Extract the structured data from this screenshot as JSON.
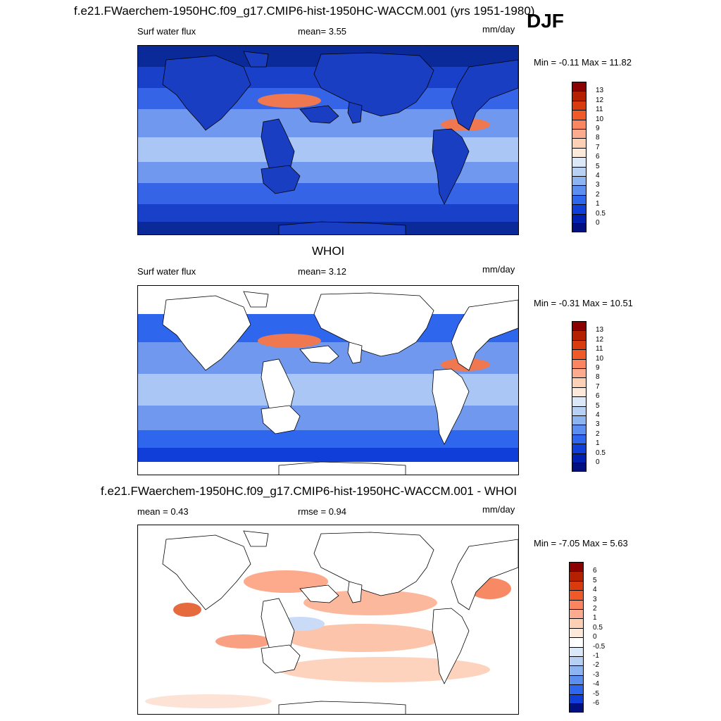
{
  "season": "DJF",
  "panels": [
    {
      "title": "f.e21.FWaerchem-1950HC.f09_g17.CMIP6-hist-1950HC-WACCM.001 (yrs 1951-1980)",
      "left_label": "Surf water flux",
      "mid_label": "mean=   3.55",
      "units": "mm/day",
      "minmax": "Min =  -0.11 Max =  11.82",
      "colorbar": {
        "labels": [
          "13",
          "12",
          "11",
          "10",
          "9",
          "8",
          "7",
          "6",
          "5",
          "4",
          "3",
          "2",
          "1",
          "0.5",
          "0"
        ],
        "colors": [
          "#8b0000",
          "#b52100",
          "#d93a0e",
          "#f05a28",
          "#fa8560",
          "#fcab8f",
          "#fdd0b5",
          "#fde9d9",
          "#dbe8f8",
          "#b7d1f5",
          "#8bb4f0",
          "#5c8ef0",
          "#2f66ee",
          "#0f3fd8",
          "#0020b0",
          "#001080"
        ]
      },
      "map_style": "model"
    },
    {
      "title": "WHOI",
      "left_label": "Surf water flux",
      "mid_label": "mean=   3.12",
      "units": "mm/day",
      "minmax": "Min =  -0.31 Max =  10.51",
      "colorbar": {
        "labels": [
          "13",
          "12",
          "11",
          "10",
          "9",
          "8",
          "7",
          "6",
          "5",
          "4",
          "3",
          "2",
          "1",
          "0.5",
          "0"
        ],
        "colors": [
          "#8b0000",
          "#b52100",
          "#d93a0e",
          "#f05a28",
          "#fa8560",
          "#fcab8f",
          "#fdd0b5",
          "#fde9d9",
          "#dbe8f8",
          "#b7d1f5",
          "#8bb4f0",
          "#5c8ef0",
          "#2f66ee",
          "#0f3fd8",
          "#0020b0",
          "#001080"
        ]
      },
      "map_style": "obs"
    },
    {
      "title": "f.e21.FWaerchem-1950HC.f09_g17.CMIP6-hist-1950HC-WACCM.001 - WHOI",
      "left_label": "mean =   0.43",
      "mid_label": "rmse =   0.94",
      "units": "mm/day",
      "minmax": "Min =  -7.05 Max =   5.63",
      "colorbar": {
        "labels": [
          "6",
          "5",
          "4",
          "3",
          "2",
          "1",
          "0.5",
          "0",
          "-0.5",
          "-1",
          "-2",
          "-3",
          "-4",
          "-5",
          "-6"
        ],
        "colors": [
          "#8b0000",
          "#b52100",
          "#d93a0e",
          "#f05a28",
          "#fa8560",
          "#fcab8f",
          "#fdd0b5",
          "#fde9d9",
          "#ffffff",
          "#dbe8f8",
          "#b7d1f5",
          "#8bb4f0",
          "#5c8ef0",
          "#2f66ee",
          "#0f3fd8",
          "#001080"
        ]
      },
      "map_style": "diff"
    }
  ]
}
